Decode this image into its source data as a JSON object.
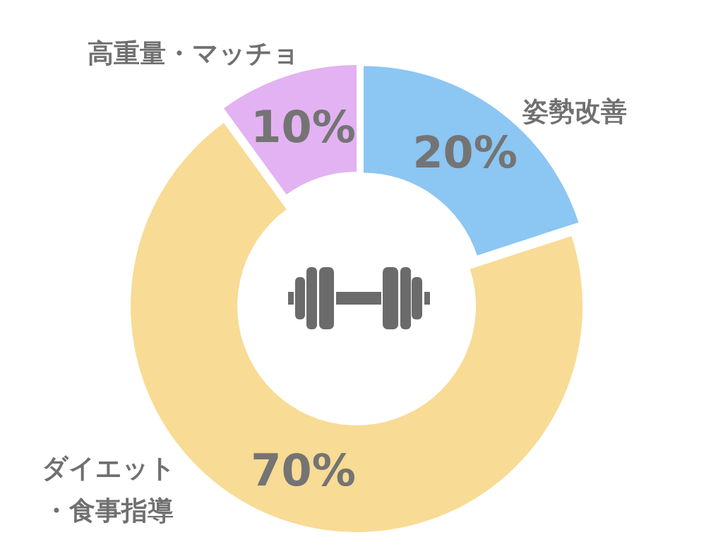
{
  "chart_data": {
    "type": "donut",
    "categories": [
      "姿勢改善",
      "ダイエット・食事指導",
      "高重量・マッチョ"
    ],
    "values": [
      20,
      70,
      10
    ],
    "value_labels": [
      "20%",
      "70%",
      "10%"
    ],
    "colors": [
      "#8cc6f2",
      "#f8db94",
      "#e3b2f2"
    ]
  }
}
